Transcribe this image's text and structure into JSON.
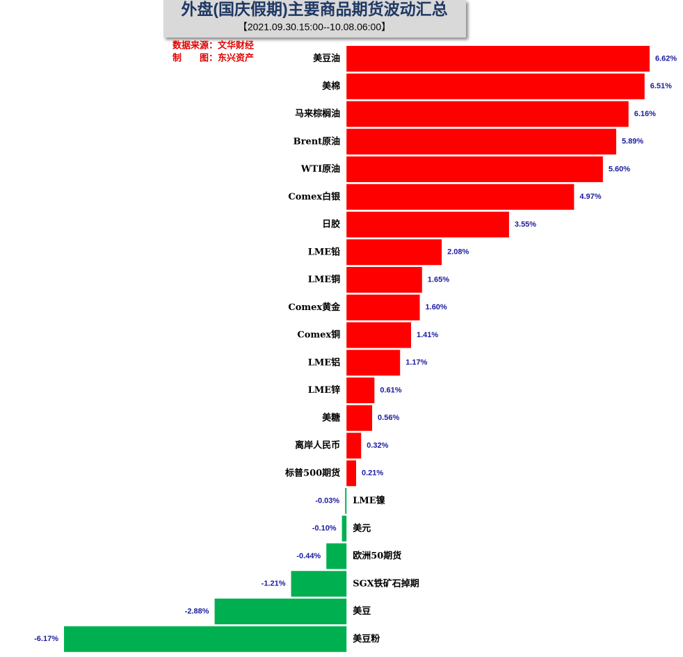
{
  "chart_data": {
    "type": "bar",
    "orientation": "horizontal",
    "title": "外盘(国庆假期)主要商品期货波动汇总",
    "subtitle": "【2021.09.30.15:00--10.08.06:00】",
    "annotations": [
      "数据来源：文华财经",
      "制　　图：东兴资产"
    ],
    "categories": [
      "美豆油",
      "美棉",
      "马来棕榈油",
      "Brent原油",
      "WTI原油",
      "Comex白银",
      "日胶",
      "LME铅",
      "LME铜",
      "Comex黄金",
      "Comex铜",
      "LME铝",
      "LME锌",
      "美糖",
      "离岸人民币",
      "标普500期货",
      "LME镍",
      "美元",
      "欧洲50期货",
      "SGX铁矿石掉期",
      "美豆",
      "美豆粉"
    ],
    "values": [
      6.62,
      6.51,
      6.16,
      5.89,
      5.6,
      4.97,
      3.55,
      2.08,
      1.65,
      1.6,
      1.41,
      1.17,
      0.61,
      0.56,
      0.32,
      0.21,
      -0.03,
      -0.1,
      -0.44,
      -1.21,
      -2.88,
      -6.17
    ],
    "value_labels": [
      "6.62%",
      "6.51%",
      "6.16%",
      "5.89%",
      "5.60%",
      "4.97%",
      "3.55%",
      "2.08%",
      "1.65%",
      "1.60%",
      "1.41%",
      "1.17%",
      "0.61%",
      "0.56%",
      "0.32%",
      "0.21%",
      "-0.03%",
      "-0.10%",
      "-0.44%",
      "-1.21%",
      "-2.88%",
      "-6.17%"
    ],
    "positive_color": "#ff0000",
    "negative_color": "#00b050"
  }
}
